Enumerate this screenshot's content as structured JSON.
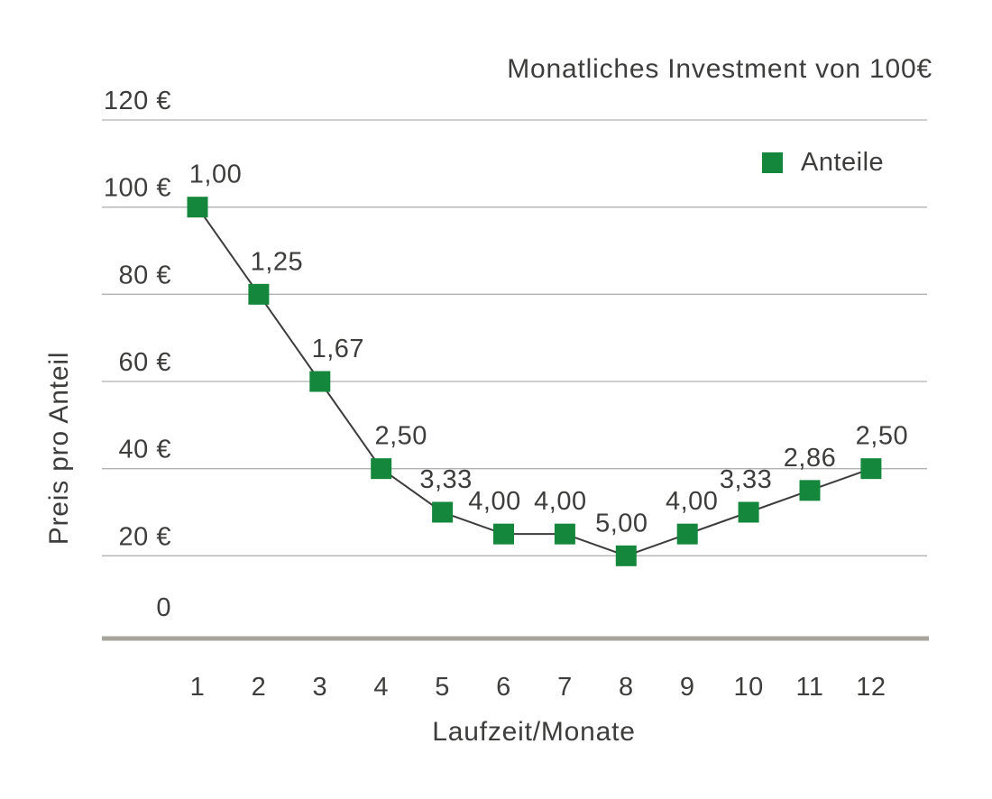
{
  "title": "Monatliches Investment von 100€",
  "axes": {
    "x_title": "Laufzeit/Monate",
    "y_title": "Preis pro Anteil"
  },
  "legend": {
    "items": [
      {
        "label": "Anteile",
        "marker": "square",
        "color": "#15873c"
      }
    ]
  },
  "colors": {
    "series_green": "#15873c",
    "series_line": "#3c3c3b",
    "text": "#3d3d3c",
    "gridline": "#b2b2b2",
    "zero_baseline": "#a7a59c",
    "background": "#ffffff"
  },
  "chart_data": {
    "type": "line",
    "title": "Monatliches Investment von 100€",
    "xlabel": "Laufzeit/Monate",
    "ylabel": "Preis pro Anteil",
    "x": [
      1,
      2,
      3,
      4,
      5,
      6,
      7,
      8,
      9,
      10,
      11,
      12
    ],
    "series": [
      {
        "name": "Anteile",
        "marker": "square",
        "color": "#15873c",
        "values": [
          100,
          80,
          60,
          40,
          30,
          25,
          25,
          20,
          25,
          30,
          35,
          40
        ],
        "point_labels": [
          "1,00",
          "1,25",
          "1,67",
          "2,50",
          "3,33",
          "4,00",
          "4,00",
          "5,00",
          "4,00",
          "3,33",
          "2,86",
          "2,50"
        ]
      }
    ],
    "y_ticks": [
      {
        "value": 120,
        "label": "120 €"
      },
      {
        "value": 100,
        "label": "100 €"
      },
      {
        "value": 80,
        "label": "80 €"
      },
      {
        "value": 60,
        "label": "60 €"
      },
      {
        "value": 40,
        "label": "40 €"
      },
      {
        "value": 20,
        "label": "20 €"
      },
      {
        "value": 0,
        "label": "0"
      }
    ],
    "ylim": [
      0,
      120
    ],
    "grid": "horizontal-only",
    "legend_position": "top-right-inside"
  }
}
